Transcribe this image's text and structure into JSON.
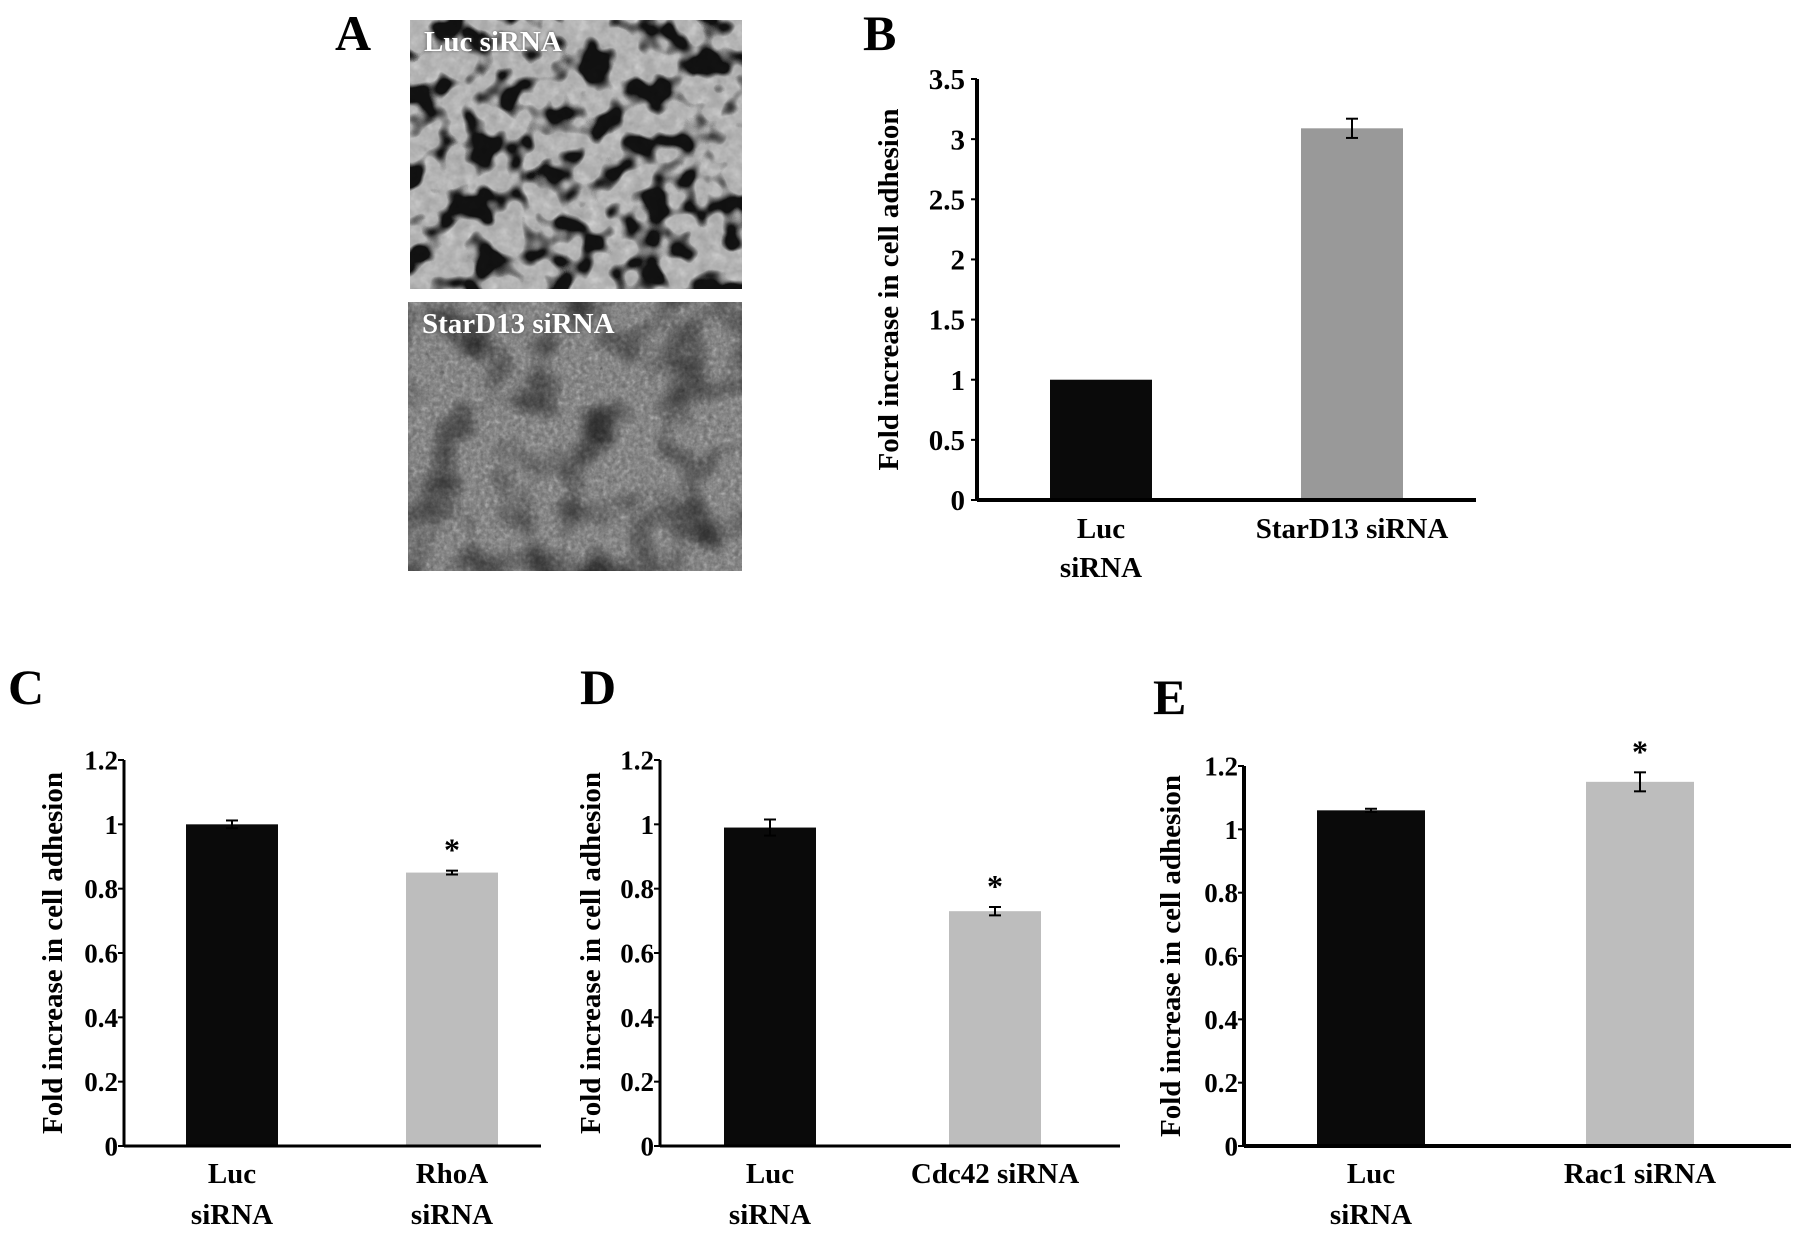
{
  "panel_letters": {
    "a": "A",
    "b": "B",
    "c": "C",
    "d": "D",
    "e": "E"
  },
  "micrographs": [
    {
      "label": "Luc siRNA"
    },
    {
      "label": "StarD13 siRNA"
    }
  ],
  "colors": {
    "black_bar": "#0a0a0a",
    "gray_bar_b": "#999999",
    "gray_bar_light": "#bdbdbd"
  },
  "chart_data": [
    {
      "id": "B",
      "type": "bar",
      "ylabel": "Fold increase in cell adhesion",
      "ylim": [
        0,
        3.5
      ],
      "yticks": [
        "0",
        "0.5",
        "1",
        "1.5",
        "2",
        "2.5",
        "3",
        "3.5"
      ],
      "categories": [
        [
          "Luc",
          "siRNA"
        ],
        [
          "StarD13 siRNA"
        ]
      ],
      "values": [
        1.0,
        3.09
      ],
      "errors": [
        0,
        0.08
      ],
      "significance": [
        "",
        ""
      ]
    },
    {
      "id": "C",
      "type": "bar",
      "ylabel": "Fold increase in cell adhesion",
      "ylim": [
        0,
        1.2
      ],
      "yticks": [
        "0",
        "0.2",
        "0.4",
        "0.6",
        "0.8",
        "1",
        "1.2"
      ],
      "categories": [
        [
          "Luc",
          "siRNA"
        ],
        [
          "RhoA",
          "siRNA"
        ]
      ],
      "values": [
        1.0,
        0.85
      ],
      "errors": [
        0.012,
        0.006
      ],
      "significance": [
        "",
        "*"
      ]
    },
    {
      "id": "D",
      "type": "bar",
      "ylabel": "Fold increase in cell adhesion",
      "ylim": [
        0,
        1.2
      ],
      "yticks": [
        "0",
        "0.2",
        "0.4",
        "0.6",
        "0.8",
        "1",
        "1.2"
      ],
      "categories": [
        [
          "Luc",
          "siRNA"
        ],
        [
          "Cdc42 siRNA"
        ]
      ],
      "values": [
        0.99,
        0.73
      ],
      "errors": [
        0.025,
        0.013
      ],
      "significance": [
        "",
        "*"
      ]
    },
    {
      "id": "E",
      "type": "bar",
      "ylabel": "Fold increase in cell adhesion",
      "ylim": [
        0,
        1.2
      ],
      "yticks": [
        "0",
        "0.2",
        "0.4",
        "0.6",
        "0.8",
        "1",
        "1.2"
      ],
      "categories": [
        [
          "Luc",
          "siRNA"
        ],
        [
          "Rac1 siRNA"
        ]
      ],
      "values": [
        1.06,
        1.15
      ],
      "errors": [
        0.005,
        0.03
      ],
      "significance": [
        "",
        "*"
      ]
    }
  ]
}
